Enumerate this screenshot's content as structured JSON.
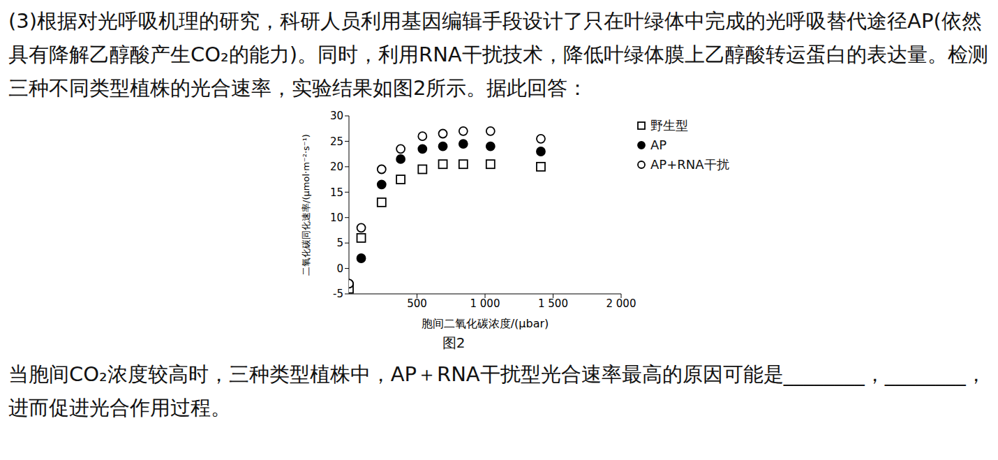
{
  "text_before": "(3)根据对光呼吸机理的研究，科研人员利用基因编辑手段设计了只在叶绿体中完成的光呼吸替代途径AP(依然具有降解乙醇酸产生CO₂的能力)。同时，利用RNA干扰技术，降低叶绿体膜上乙醇酸转运蛋白的表达量。检测三种不同类型植株的光合速率，实验结果如图2所示。据此回答：",
  "caption": "图2",
  "text_after": "当胞间CO₂浓度较高时，三种类型植株中，AP＋RNA干扰型光合速率最高的原因可能是________，________，进而促进光合作用过程。",
  "chart_data": {
    "type": "scatter",
    "x_label": "胞间二氧化碳浓度/(μbar)",
    "y_label": "二氧化碳同化速率/(μmol·m⁻²·s⁻¹)",
    "x": [
      0,
      90,
      240,
      380,
      540,
      690,
      840,
      1040,
      1410
    ],
    "series": [
      {
        "name": "野生型",
        "color": "#000000",
        "marker": "square_open",
        "values": [
          -4,
          6,
          13,
          17.5,
          19.5,
          20.5,
          20.5,
          20.5,
          20
        ]
      },
      {
        "name": "AP",
        "color": "#000000",
        "marker": "circle_filled",
        "values": [
          -3,
          2,
          16.5,
          21.5,
          23.5,
          24,
          24.5,
          24,
          23
        ]
      },
      {
        "name": "AP+RNA干扰",
        "color": "#000000",
        "marker": "circle_open",
        "values": [
          -3,
          8,
          19.5,
          23.5,
          26,
          26.5,
          27,
          27,
          25.5
        ]
      }
    ],
    "xlim": [
      0,
      2000
    ],
    "xticks": [
      500,
      {
        "value": 1000,
        "label": "1 000"
      },
      {
        "value": 1500,
        "label": "1 500"
      },
      {
        "value": 2000,
        "label": "2 000"
      }
    ],
    "ylim": [
      -5,
      30
    ],
    "yticks": [
      -5,
      0,
      5,
      10,
      15,
      20,
      25,
      30
    ],
    "grid": false,
    "legend": "right"
  }
}
